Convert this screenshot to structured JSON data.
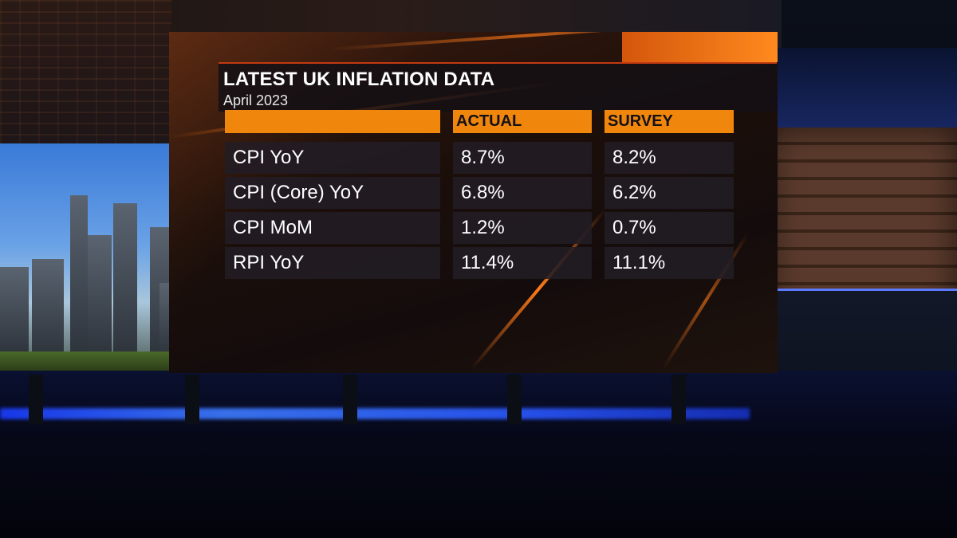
{
  "graphic": {
    "title": "LATEST UK INFLATION DATA",
    "subtitle": "April 2023",
    "columns": [
      "",
      "ACTUAL",
      "SURVEY"
    ],
    "rows": [
      {
        "label": "CPI YoY",
        "actual": "8.7%",
        "survey": "8.2%"
      },
      {
        "label": "CPI (Core) YoY",
        "actual": "6.8%",
        "survey": "6.2%"
      },
      {
        "label": "CPI MoM",
        "actual": "1.2%",
        "survey": "0.7%"
      },
      {
        "label": "RPI YoY",
        "actual": "11.4%",
        "survey": "11.1%"
      }
    ],
    "accent_color": "#f0870c"
  }
}
